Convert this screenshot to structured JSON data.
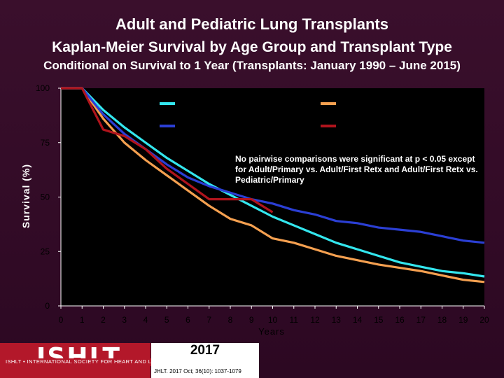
{
  "header": {
    "title": "Adult and Pediatric Lung Transplants",
    "subtitle": "Kaplan-Meier Survival by Age Group and Transplant Type",
    "subtitle2": "Conditional on Survival to 1 Year (Transplants: January 1990 – June 2015)"
  },
  "chart_data": {
    "type": "line",
    "xlabel": "Years",
    "ylabel": "Survival (%)",
    "xlim": [
      0,
      20
    ],
    "ylim": [
      0,
      100
    ],
    "x_ticks": [
      0,
      1,
      2,
      3,
      4,
      5,
      6,
      7,
      8,
      9,
      10,
      11,
      12,
      13,
      14,
      15,
      16,
      17,
      18,
      19,
      20
    ],
    "y_ticks": [
      0,
      25,
      50,
      75,
      100
    ],
    "legend_placement": "top-right",
    "annotation": "No pairwise comparisons were significant at p < 0.05 except for Adult/Primary vs. Adult/First Retx and Adult/First Retx vs. Pediatric/Primary",
    "series": [
      {
        "name": "",
        "color": "#33e6ee",
        "x": [
          0,
          1,
          2,
          3,
          4,
          5,
          6,
          7,
          8,
          9,
          10,
          11,
          12,
          13,
          14,
          15,
          16,
          17,
          18,
          19,
          20
        ],
        "values": [
          100,
          100,
          90,
          82,
          75,
          68,
          62,
          56,
          51,
          46,
          41,
          37,
          33,
          29,
          26,
          23,
          20,
          18,
          16,
          15,
          13.5
        ]
      },
      {
        "name": "",
        "color": "#f5a050",
        "x": [
          0,
          1,
          2,
          3,
          4,
          5,
          6,
          7,
          8,
          9,
          10,
          11,
          12,
          13,
          14,
          15,
          16,
          17,
          18,
          19,
          20
        ],
        "values": [
          100,
          100,
          86,
          75,
          67,
          60,
          53,
          46,
          40,
          37,
          31,
          29,
          26,
          23,
          21,
          19,
          17.5,
          16,
          14,
          12,
          11
        ]
      },
      {
        "name": "",
        "color": "#2b3fd4",
        "x": [
          0,
          1,
          2,
          3,
          4,
          5,
          6,
          7,
          8,
          9,
          10,
          11,
          12,
          13,
          14,
          15,
          16,
          17,
          18,
          19,
          20
        ],
        "values": [
          100,
          100,
          88,
          79,
          72,
          65,
          59,
          55,
          52,
          49,
          47,
          44,
          42,
          39,
          38,
          36,
          35,
          34,
          32,
          30,
          29
        ]
      },
      {
        "name": "",
        "color": "#b0141c",
        "x": [
          0,
          1,
          2,
          3,
          4,
          5,
          6,
          7,
          8,
          9,
          10
        ],
        "values": [
          100,
          100,
          81,
          78,
          72,
          63,
          56,
          49,
          49,
          49,
          43
        ]
      }
    ]
  },
  "footer": {
    "logo": "ISHLT",
    "logo_sub": "ISHLT • INTERNATIONAL SOCIETY FOR HEART AND LUNG TRANSPLANTATION",
    "year": "2017",
    "citation": "JHLT. 2017 Oct; 36(10): 1037-1079"
  }
}
